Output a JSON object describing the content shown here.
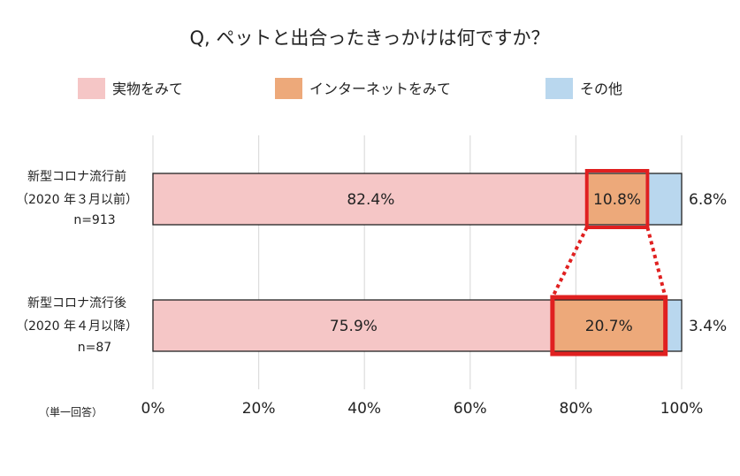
{
  "chart_data": {
    "type": "bar",
    "orientation": "horizontal",
    "stacked": true,
    "title": "Q, ペットと出合ったきっかけは何ですか？",
    "xlim": [
      0,
      100
    ],
    "xticks": [
      "0%",
      "20%",
      "40%",
      "60%",
      "80%",
      "100%"
    ],
    "grid": true,
    "legend_position": "top",
    "note": "（単一回答）",
    "categories": [
      {
        "lines": [
          "新型コロナ流行前",
          "（2020 年３月以前）",
          "n=913"
        ]
      },
      {
        "lines": [
          "新型コロナ流行後",
          "（2020 年４月以降）",
          "n=87"
        ]
      }
    ],
    "series": [
      {
        "name": "実物をみて",
        "color": "#f5c6c6",
        "values": [
          82.4,
          75.9
        ],
        "labels": [
          "82.4%",
          "75.9%"
        ]
      },
      {
        "name": "インターネットをみて",
        "color": "#eda97a",
        "values": [
          10.8,
          20.7
        ],
        "labels": [
          "10.8%",
          "20.7%"
        ]
      },
      {
        "name": "その他",
        "color": "#b9d7ee",
        "values": [
          6.8,
          3.4
        ],
        "labels": [
          "6.8%",
          "3.4%"
        ]
      }
    ],
    "highlight_series": 1,
    "highlight_color": "#e02020"
  }
}
